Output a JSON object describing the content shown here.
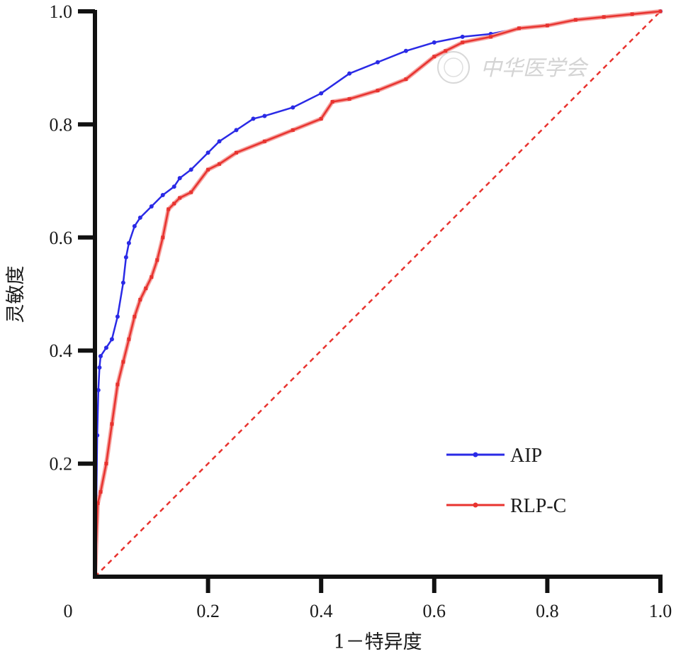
{
  "chart_data": {
    "type": "line",
    "xlabel": "1－特异度",
    "ylabel": "灵敏度",
    "xlim": [
      0,
      1
    ],
    "ylim": [
      0,
      1
    ],
    "x_ticks": [
      "0",
      "0.2",
      "0.4",
      "0.6",
      "0.8",
      "1.0"
    ],
    "y_ticks": [
      "0.2",
      "0.4",
      "0.6",
      "0.8",
      "1.0"
    ],
    "x_tick_values": [
      0,
      0.2,
      0.4,
      0.6,
      0.8,
      1.0
    ],
    "y_tick_values": [
      0.2,
      0.4,
      0.6,
      0.8,
      1.0
    ],
    "legend_position": "bottom-right",
    "grid": false,
    "watermark": "中华医学会",
    "reference_line": {
      "x": [
        0,
        1
      ],
      "y": [
        0,
        1
      ],
      "color": "#e8332f",
      "style": "dashed"
    },
    "series": [
      {
        "name": "AIP",
        "color": "#2a2ae6",
        "x": [
          0,
          0.002,
          0.004,
          0.006,
          0.008,
          0.01,
          0.02,
          0.03,
          0.04,
          0.05,
          0.055,
          0.06,
          0.07,
          0.08,
          0.1,
          0.12,
          0.14,
          0.15,
          0.17,
          0.2,
          0.22,
          0.25,
          0.28,
          0.3,
          0.35,
          0.4,
          0.45,
          0.5,
          0.55,
          0.6,
          0.65,
          0.7,
          0.75,
          0.8,
          0.85,
          0.9,
          0.95,
          1.0
        ],
        "y": [
          0,
          0.1,
          0.25,
          0.33,
          0.37,
          0.39,
          0.405,
          0.42,
          0.46,
          0.52,
          0.565,
          0.59,
          0.62,
          0.635,
          0.655,
          0.675,
          0.69,
          0.705,
          0.72,
          0.75,
          0.77,
          0.79,
          0.81,
          0.815,
          0.83,
          0.855,
          0.89,
          0.91,
          0.93,
          0.945,
          0.955,
          0.96,
          0.97,
          0.975,
          0.985,
          0.99,
          0.995,
          1.0
        ]
      },
      {
        "name": "RLP-C",
        "color": "#e8332f",
        "x": [
          0,
          0.005,
          0.01,
          0.02,
          0.03,
          0.04,
          0.05,
          0.06,
          0.07,
          0.08,
          0.09,
          0.1,
          0.11,
          0.12,
          0.13,
          0.14,
          0.15,
          0.17,
          0.2,
          0.22,
          0.25,
          0.3,
          0.35,
          0.4,
          0.42,
          0.45,
          0.5,
          0.55,
          0.6,
          0.62,
          0.65,
          0.7,
          0.75,
          0.8,
          0.85,
          0.9,
          0.95,
          1.0
        ],
        "y": [
          0,
          0.13,
          0.15,
          0.2,
          0.27,
          0.34,
          0.38,
          0.42,
          0.46,
          0.49,
          0.51,
          0.53,
          0.56,
          0.6,
          0.65,
          0.66,
          0.67,
          0.68,
          0.72,
          0.73,
          0.75,
          0.77,
          0.79,
          0.81,
          0.84,
          0.845,
          0.86,
          0.88,
          0.92,
          0.93,
          0.945,
          0.955,
          0.97,
          0.975,
          0.985,
          0.99,
          0.995,
          1.0
        ]
      }
    ]
  }
}
